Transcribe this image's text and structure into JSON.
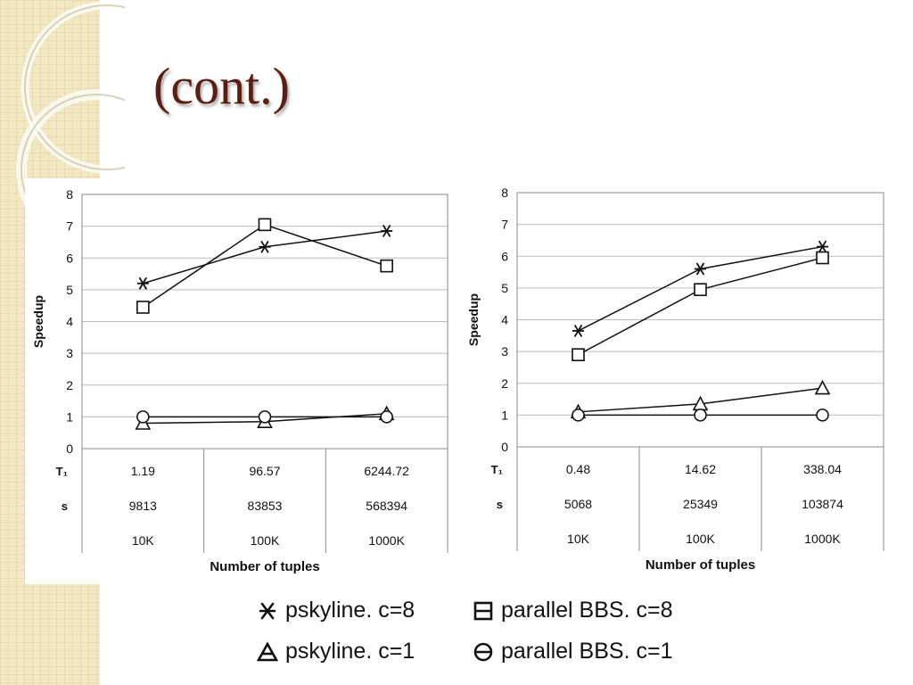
{
  "title": "(cont.)",
  "chart_data": [
    {
      "type": "line",
      "ylabel": "Speedup",
      "xlabel": "Number of tuples",
      "ylim": [
        0,
        8
      ],
      "yticks": [
        "0",
        "1",
        "2",
        "3",
        "4",
        "5",
        "6",
        "7",
        "8"
      ],
      "grid": true,
      "categories": [
        "10K",
        "100K",
        "1000K"
      ],
      "table_rows": [
        {
          "label": "T₁",
          "values": [
            "1.19",
            "96.57",
            "6244.72"
          ]
        },
        {
          "label": "s",
          "values": [
            "9813",
            "83853",
            "568394"
          ]
        }
      ],
      "series": [
        {
          "name": "pskyline. c=8",
          "marker": "asterisk",
          "values": [
            5.2,
            6.35,
            6.85
          ]
        },
        {
          "name": "parallel BBS. c=8",
          "marker": "square",
          "values": [
            4.45,
            7.05,
            5.75
          ]
        },
        {
          "name": "pskyline. c=1",
          "marker": "triangle",
          "values": [
            0.8,
            0.85,
            1.1
          ]
        },
        {
          "name": "parallel BBS. c=1",
          "marker": "circle",
          "values": [
            1.0,
            1.0,
            1.0
          ]
        }
      ]
    },
    {
      "type": "line",
      "ylabel": "Speedup",
      "xlabel": "Number of tuples",
      "ylim": [
        0,
        8
      ],
      "yticks": [
        "0",
        "1",
        "2",
        "3",
        "4",
        "5",
        "6",
        "7",
        "8"
      ],
      "grid": true,
      "categories": [
        "10K",
        "100K",
        "1000K"
      ],
      "table_rows": [
        {
          "label": "T₁",
          "values": [
            "0.48",
            "14.62",
            "338.04"
          ]
        },
        {
          "label": "s",
          "values": [
            "5068",
            "25349",
            "103874"
          ]
        }
      ],
      "series": [
        {
          "name": "pskyline. c=8",
          "marker": "asterisk",
          "values": [
            3.65,
            5.6,
            6.3
          ]
        },
        {
          "name": "parallel BBS. c=8",
          "marker": "square",
          "values": [
            2.9,
            4.95,
            5.95
          ]
        },
        {
          "name": "pskyline. c=1",
          "marker": "triangle",
          "values": [
            1.1,
            1.35,
            1.85
          ]
        },
        {
          "name": "parallel BBS. c=1",
          "marker": "circle",
          "values": [
            1.0,
            1.0,
            1.0
          ]
        }
      ]
    }
  ],
  "legend": [
    {
      "label": "pskyline. c=8",
      "marker": "asterisk"
    },
    {
      "label": "parallel BBS. c=8",
      "marker": "square"
    },
    {
      "label": "pskyline. c=1",
      "marker": "triangle"
    },
    {
      "label": "parallel BBS. c=1",
      "marker": "circle"
    }
  ]
}
